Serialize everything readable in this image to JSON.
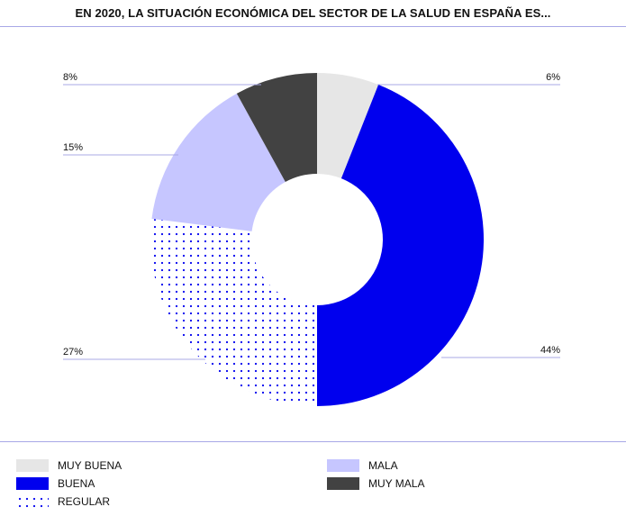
{
  "title": "EN 2020, LA SITUACIÓN ECONÓMICA DEL SECTOR DE LA SALUD EN ESPAÑA ES...",
  "colors": {
    "muy_buena": "#e6e6e6",
    "buena": "#0000ee",
    "regular": "#0000ee",
    "mala": "#c6c6ff",
    "muy_mala": "#424242",
    "rule": "#a8a8e6"
  },
  "chart_data": {
    "type": "pie",
    "title": "EN 2020, LA SITUACIÓN ECONÓMICA DEL SECTOR DE LA SALUD EN ESPAÑA ES...",
    "categories": [
      "MUY BUENA",
      "BUENA",
      "REGULAR",
      "MALA",
      "MUY MALA"
    ],
    "values": [
      6,
      44,
      27,
      15,
      8
    ],
    "labels": [
      "6%",
      "44%",
      "27%",
      "15%",
      "8%"
    ],
    "donut": true,
    "legend_position": "bottom"
  },
  "legend": [
    {
      "label": "MUY BUENA",
      "key": "muy_buena"
    },
    {
      "label": "BUENA",
      "key": "buena"
    },
    {
      "label": "REGULAR",
      "key": "regular"
    },
    {
      "label": "MALA",
      "key": "mala"
    },
    {
      "label": "MUY MALA",
      "key": "muy_mala"
    }
  ]
}
